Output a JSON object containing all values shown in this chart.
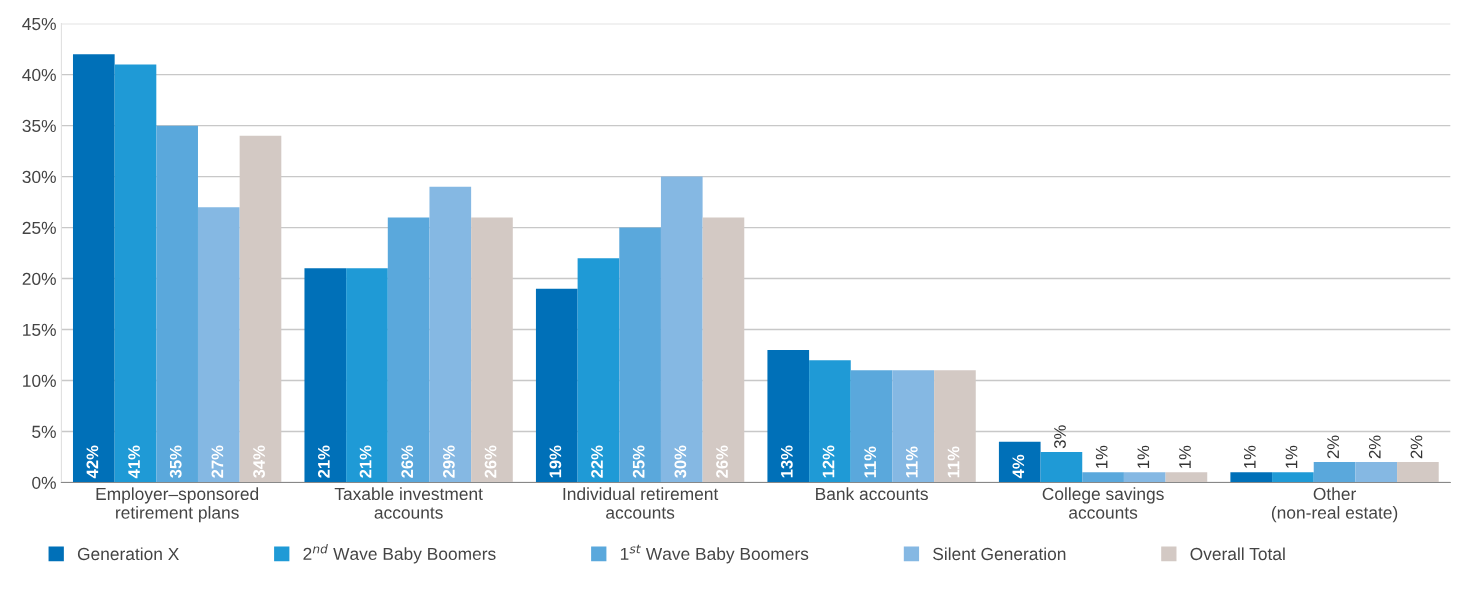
{
  "chart_data": {
    "type": "bar",
    "categories": [
      "Employer–sponsored\nretirement plans",
      "Taxable investment\naccounts",
      "Individual retirement\naccounts",
      "Bank accounts",
      "College savings\naccounts",
      "Other\n(non-real estate)"
    ],
    "series": [
      {
        "name": "Generation X",
        "color": "#0070b8",
        "values": [
          42,
          21,
          19,
          13,
          4,
          1
        ],
        "value_labels": [
          "42%",
          "21%",
          "19%",
          "13%",
          "4%",
          "1%"
        ]
      },
      {
        "name": "2$^{nd}$ Wave Baby Boomers",
        "color": "#1f9ad6",
        "values": [
          41,
          21,
          22,
          12,
          3,
          1
        ],
        "value_labels": [
          "41%",
          "21%",
          "22%",
          "12%",
          "3%",
          "1%"
        ]
      },
      {
        "name": "1$^{st}$ Wave Baby Boomers",
        "color": "#5aa8dc",
        "values": [
          35,
          26,
          25,
          11,
          1,
          2
        ],
        "value_labels": [
          "35%",
          "26%",
          "25%",
          "11%",
          "1%",
          "2%"
        ]
      },
      {
        "name": "Silent Generation",
        "color": "#85b8e3",
        "values": [
          27,
          29,
          30,
          11,
          1,
          2
        ],
        "value_labels": [
          "27%",
          "29%",
          "30%",
          "11%",
          "1%",
          "2%"
        ]
      },
      {
        "name": "Overall Total",
        "color": "#d3c9c4",
        "values": [
          34,
          26,
          26,
          11,
          1,
          2
        ],
        "value_labels": [
          "34%",
          "26%",
          "26%",
          "11%",
          "1%",
          "2%"
        ]
      }
    ],
    "ylim": [
      0,
      45
    ],
    "yticks": [
      {
        "value": 0,
        "label": "0%"
      },
      {
        "value": 5,
        "label": "5%"
      },
      {
        "value": 10,
        "label": "10%"
      },
      {
        "value": 15,
        "label": "15%"
      },
      {
        "value": 20,
        "label": "20%"
      },
      {
        "value": 25,
        "label": "25%"
      },
      {
        "value": 30,
        "label": "30%"
      },
      {
        "value": 35,
        "label": "35%"
      },
      {
        "value": 40,
        "label": "40%"
      },
      {
        "value": 45,
        "label": "45%"
      }
    ],
    "grid": "y",
    "legend": "bottom"
  }
}
